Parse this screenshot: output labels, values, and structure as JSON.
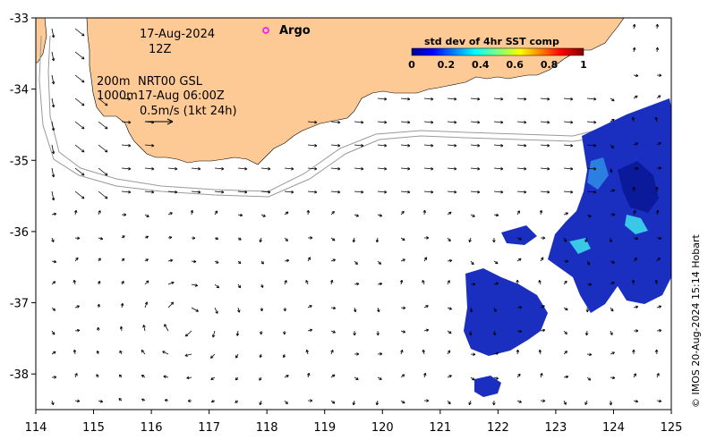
{
  "map": {
    "date_text": "17-Aug-2024",
    "hour_text": "12Z",
    "depth_200": "200m",
    "depth_1000": "1000m",
    "product_line1": "NRT00 GSL",
    "product_line2": "17-Aug 06:00Z",
    "scale_text": "0.5m/s (1kt 24h)",
    "argo_label": "Argo",
    "credit": "© IMOS 20-Aug-2024 15:14 Hobart",
    "land_color": "#fdc994",
    "argo_color": "#ff00ff"
  },
  "colorbar": {
    "title": "std dev of 4hr SST comp",
    "ticks": [
      "0",
      "0.2",
      "0.4",
      "0.6",
      "0.8",
      "1"
    ]
  },
  "axes": {
    "x_ticks": [
      "114",
      "115",
      "116",
      "117",
      "118",
      "119",
      "120",
      "121",
      "122",
      "123",
      "124",
      "125"
    ],
    "y_ticks": [
      "-33",
      "-34",
      "-35",
      "-36",
      "-37",
      "-38"
    ],
    "lon_range": [
      114,
      125
    ],
    "lat_range": [
      -38.5,
      -33
    ]
  }
}
